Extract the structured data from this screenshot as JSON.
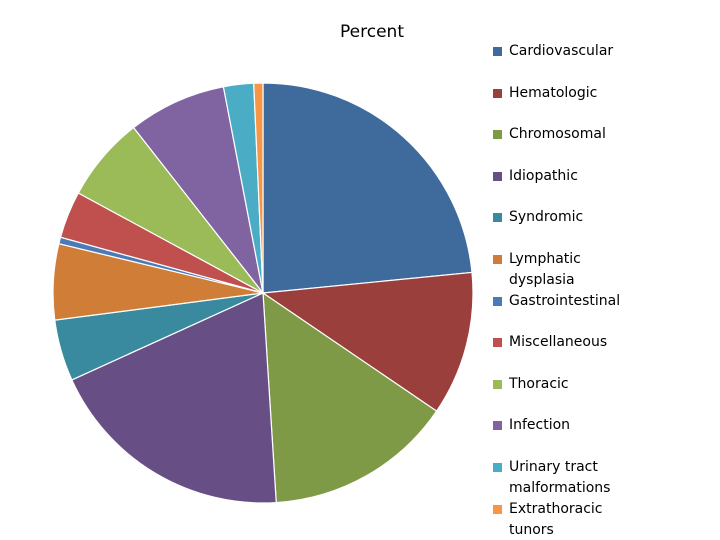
{
  "chart_data": {
    "type": "pie",
    "title": "Percent",
    "categories": [
      "Cardiovascular",
      "Hematologic",
      "Chromosomal",
      "Idiopathic",
      "Syndromic",
      "Lymphatic dysplasia",
      "Gastrointestinal",
      "Miscellaneous",
      "Thoracic",
      "Infection",
      "Urinary tract malformations",
      "Extrathoracic tunors"
    ],
    "values": [
      23.3,
      11,
      14.4,
      19.1,
      4.7,
      5.8,
      0.5,
      3.6,
      6.5,
      7.5,
      2.3,
      0.7
    ],
    "colors": [
      "#3e6a9c",
      "#9b3f3c",
      "#7f9a47",
      "#674f86",
      "#3a8a9f",
      "#d07d37",
      "#4a7bb6",
      "#c0504d",
      "#9bbb59",
      "#8064a2",
      "#4bacc6",
      "#f79646"
    ]
  }
}
